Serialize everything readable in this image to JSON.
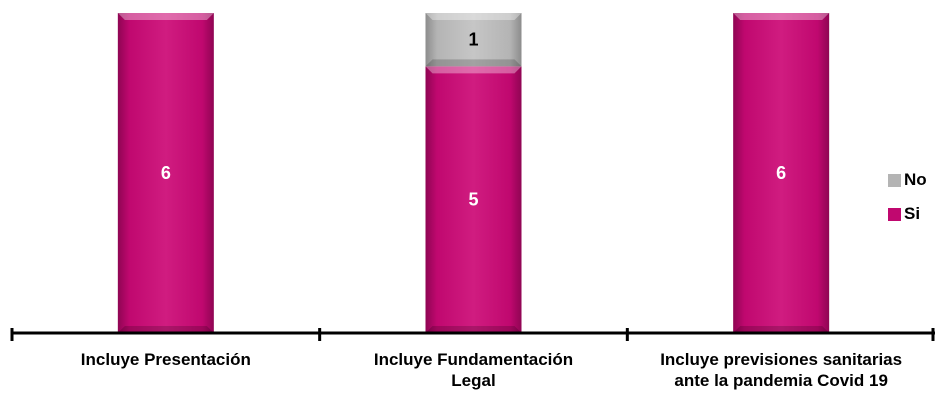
{
  "chart_data": {
    "type": "bar",
    "stacked": true,
    "categories": [
      [
        "Incluye Presentación"
      ],
      [
        "Incluye Fundamentación",
        "Legal"
      ],
      [
        "Incluye previsiones sanitarias",
        "ante la pandemia Covid 19"
      ]
    ],
    "series": [
      {
        "name": "Si",
        "values": [
          6,
          5,
          6
        ],
        "color": "#C0086F"
      },
      {
        "name": "No",
        "values": [
          0,
          1,
          0
        ],
        "color": "#B4B4B4"
      }
    ],
    "ylim": [
      0,
      6
    ],
    "grid": false,
    "legend": "right",
    "data_labels": true
  }
}
